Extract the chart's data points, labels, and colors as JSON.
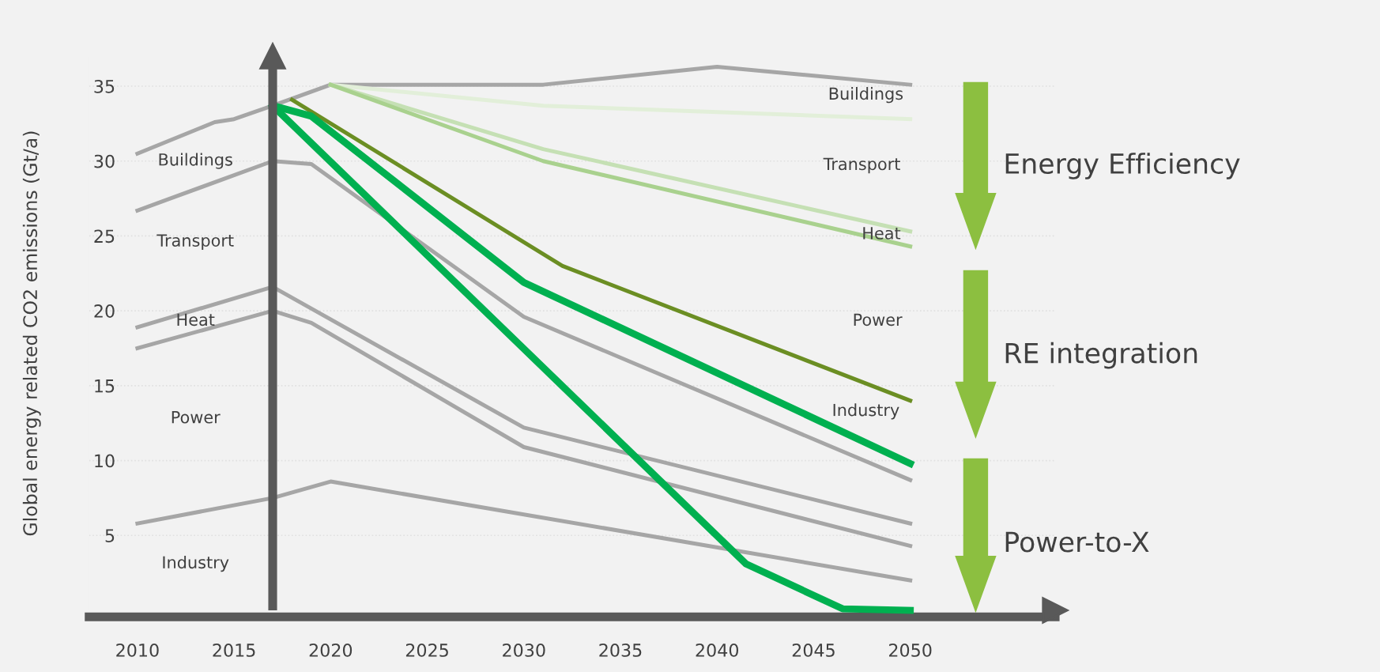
{
  "chart_data": {
    "type": "line",
    "ylabel": "Global energy related CO2 emissions (Gt/a)",
    "xlim": [
      2007.5,
      2057.5
    ],
    "ylim": [
      0,
      37
    ],
    "xticks": [
      2010,
      2015,
      2020,
      2025,
      2030,
      2035,
      2040,
      2045,
      2050
    ],
    "yticks": [
      5,
      10,
      15,
      20,
      25,
      30,
      35
    ],
    "grid": "y",
    "legend": false,
    "marker": "none",
    "line_style": "solid",
    "series": [
      {
        "color": "#a6a6a6",
        "x": [
          2010,
          2014,
          2015,
          2017,
          2020,
          2031,
          2040,
          2050
        ],
        "values": [
          30.5,
          32.6,
          32.8,
          33.7,
          35.1,
          35.1,
          36.3,
          35.1
        ]
      },
      {
        "color": "#a6a6a6",
        "x": [
          2010,
          2017,
          2019,
          2030,
          2050
        ],
        "values": [
          26.7,
          30.0,
          29.8,
          19.6,
          8.7
        ]
      },
      {
        "color": "#a6a6a6",
        "x": [
          2010,
          2017,
          2030,
          2050
        ],
        "values": [
          18.9,
          21.6,
          12.2,
          5.8
        ]
      },
      {
        "color": "#a6a6a6",
        "x": [
          2010,
          2017,
          2019,
          2030,
          2050
        ],
        "values": [
          17.5,
          20.0,
          19.2,
          10.9,
          4.3
        ]
      },
      {
        "color": "#a6a6a6",
        "x": [
          2010,
          2017,
          2020,
          2050
        ],
        "values": [
          5.8,
          7.5,
          8.6,
          2.0
        ]
      },
      {
        "color": "#e2efd9",
        "x": [
          2020,
          2031,
          2050
        ],
        "values": [
          35.1,
          33.7,
          32.8
        ]
      },
      {
        "color": "#c5e0b4",
        "x": [
          2020,
          2031,
          2050
        ],
        "values": [
          35.1,
          30.8,
          25.3
        ]
      },
      {
        "color": "#a9d18e",
        "x": [
          2020,
          2031,
          2050
        ],
        "values": [
          35.1,
          30.0,
          24.3
        ]
      },
      {
        "color": "#6b8e23",
        "x": [
          2018,
          2032,
          2050
        ],
        "values": [
          34.1,
          23.0,
          14.0
        ]
      },
      {
        "color": "#00b050",
        "x": [
          2017,
          2019,
          2030,
          2050
        ],
        "values": [
          33.7,
          33.0,
          21.9,
          9.8
        ]
      },
      {
        "color": "#00b050",
        "x": [
          2017,
          2041.5,
          2046.5,
          2050
        ],
        "values": [
          33.7,
          3.1,
          0.1,
          0
        ]
      }
    ],
    "ref_lines": [
      {
        "axis": "x",
        "value": 2017,
        "color": "#595959"
      }
    ],
    "annotations": [
      "Buildings",
      "Transport",
      "Heat",
      "Power",
      "Industry",
      "Buildings",
      "Transport",
      "Heat",
      "Power",
      "Industry",
      "Energy Efficiency",
      "RE integration",
      "Power-to-X"
    ]
  }
}
